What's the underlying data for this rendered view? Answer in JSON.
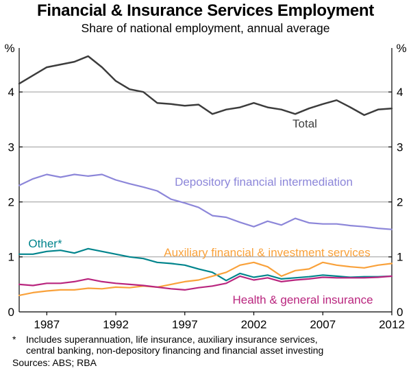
{
  "chart": {
    "title": "Financial & Insurance Services Employment",
    "subtitle": "Share of national employment, annual average"
  },
  "chart_data": {
    "type": "line",
    "title": "Financial & Insurance Services Employment",
    "subtitle": "Share of national employment, annual average",
    "unit_left": "%",
    "unit_right": "%",
    "xlim": [
      1985,
      2012
    ],
    "ylim": [
      0,
      4.8
    ],
    "xticks": [
      1987,
      1992,
      1997,
      2002,
      2007,
      2012
    ],
    "yticks": [
      0,
      1,
      2,
      3,
      4
    ],
    "grid": "horizontal",
    "legend_position": "inline-labels",
    "x": [
      1985,
      1986,
      1987,
      1988,
      1989,
      1990,
      1991,
      1992,
      1993,
      1994,
      1995,
      1996,
      1997,
      1998,
      1999,
      2000,
      2001,
      2002,
      2003,
      2004,
      2005,
      2006,
      2007,
      2008,
      2009,
      2010,
      2011,
      2012
    ],
    "series": [
      {
        "name": "total",
        "label": "Total",
        "color": "#3c3c3c",
        "values": [
          4.15,
          4.3,
          4.45,
          4.5,
          4.55,
          4.65,
          4.45,
          4.2,
          4.05,
          4.0,
          3.8,
          3.78,
          3.75,
          3.77,
          3.6,
          3.68,
          3.72,
          3.8,
          3.72,
          3.68,
          3.6,
          3.7,
          3.78,
          3.85,
          3.72,
          3.58,
          3.68,
          3.7
        ]
      },
      {
        "name": "depository-financial-intermediation",
        "label": "Depository financial intermediation",
        "color": "#8c86d9",
        "values": [
          2.3,
          2.42,
          2.5,
          2.45,
          2.5,
          2.47,
          2.5,
          2.4,
          2.33,
          2.27,
          2.2,
          2.05,
          1.98,
          1.9,
          1.75,
          1.72,
          1.63,
          1.55,
          1.65,
          1.58,
          1.7,
          1.62,
          1.6,
          1.6,
          1.57,
          1.55,
          1.52,
          1.5
        ]
      },
      {
        "name": "other",
        "label": "Other*",
        "color": "#00848c",
        "values": [
          1.05,
          1.05,
          1.1,
          1.12,
          1.07,
          1.15,
          1.1,
          1.05,
          1.0,
          0.97,
          0.9,
          0.88,
          0.85,
          0.78,
          0.72,
          0.57,
          0.7,
          0.63,
          0.67,
          0.6,
          0.62,
          0.64,
          0.67,
          0.65,
          0.63,
          0.64,
          0.64,
          0.65
        ]
      },
      {
        "name": "auxiliary-financial-investment-services",
        "label": "Auxiliary financial & investment services",
        "color": "#f9a13a",
        "values": [
          0.3,
          0.35,
          0.38,
          0.4,
          0.4,
          0.43,
          0.42,
          0.45,
          0.44,
          0.47,
          0.45,
          0.5,
          0.55,
          0.58,
          0.65,
          0.72,
          0.85,
          0.9,
          0.82,
          0.65,
          0.75,
          0.78,
          0.9,
          0.85,
          0.82,
          0.8,
          0.85,
          0.88
        ]
      },
      {
        "name": "health-general-insurance",
        "label": "Health & general insurance",
        "color": "#b9257e",
        "values": [
          0.5,
          0.48,
          0.52,
          0.52,
          0.55,
          0.6,
          0.55,
          0.52,
          0.5,
          0.48,
          0.45,
          0.42,
          0.4,
          0.44,
          0.47,
          0.52,
          0.65,
          0.58,
          0.62,
          0.55,
          0.58,
          0.6,
          0.63,
          0.62,
          0.62,
          0.62,
          0.63,
          0.65
        ]
      }
    ]
  },
  "footnote": {
    "marker": "*",
    "text": "Includes superannuation, life insurance, auxiliary insurance services,\ncentral banking, non-depository financing and financial asset investing",
    "sources": "Sources: ABS; RBA"
  }
}
